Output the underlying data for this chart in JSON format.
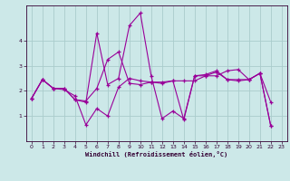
{
  "xlabel": "Windchill (Refroidissement éolien,°C)",
  "background_color": "#cce8e8",
  "grid_color": "#aacccc",
  "line_color": "#990099",
  "xlim": [
    -0.5,
    23.5
  ],
  "ylim": [
    0.0,
    5.4
  ],
  "xticks": [
    0,
    1,
    2,
    3,
    4,
    5,
    6,
    7,
    8,
    9,
    10,
    11,
    12,
    13,
    14,
    15,
    16,
    17,
    18,
    19,
    20,
    21,
    22,
    23
  ],
  "yticks": [
    1,
    2,
    3,
    4
  ],
  "series_x": [
    0,
    1,
    2,
    3,
    4,
    5,
    6,
    7,
    8,
    9,
    10,
    11,
    12,
    13,
    14,
    15,
    16,
    17,
    18,
    19,
    20,
    21,
    22
  ],
  "series": [
    [
      1.7,
      2.45,
      2.1,
      2.1,
      1.65,
      1.6,
      2.1,
      3.25,
      3.55,
      2.3,
      2.25,
      2.35,
      2.35,
      2.4,
      2.4,
      2.4,
      2.6,
      2.6,
      2.8,
      2.85,
      2.45,
      2.7,
      1.55
    ],
    [
      1.7,
      2.45,
      2.1,
      2.1,
      1.65,
      1.55,
      4.3,
      2.25,
      2.5,
      4.6,
      5.1,
      2.6,
      0.9,
      1.2,
      0.9,
      2.6,
      2.65,
      2.8,
      2.45,
      2.45,
      2.45,
      2.7,
      0.6
    ],
    [
      1.7,
      2.45,
      2.1,
      2.05,
      1.8,
      0.65,
      1.3,
      1.0,
      2.15,
      2.5,
      2.4,
      2.35,
      2.3,
      2.4,
      0.85,
      2.6,
      2.6,
      2.75,
      2.45,
      2.4,
      2.45,
      2.7,
      0.6
    ]
  ]
}
